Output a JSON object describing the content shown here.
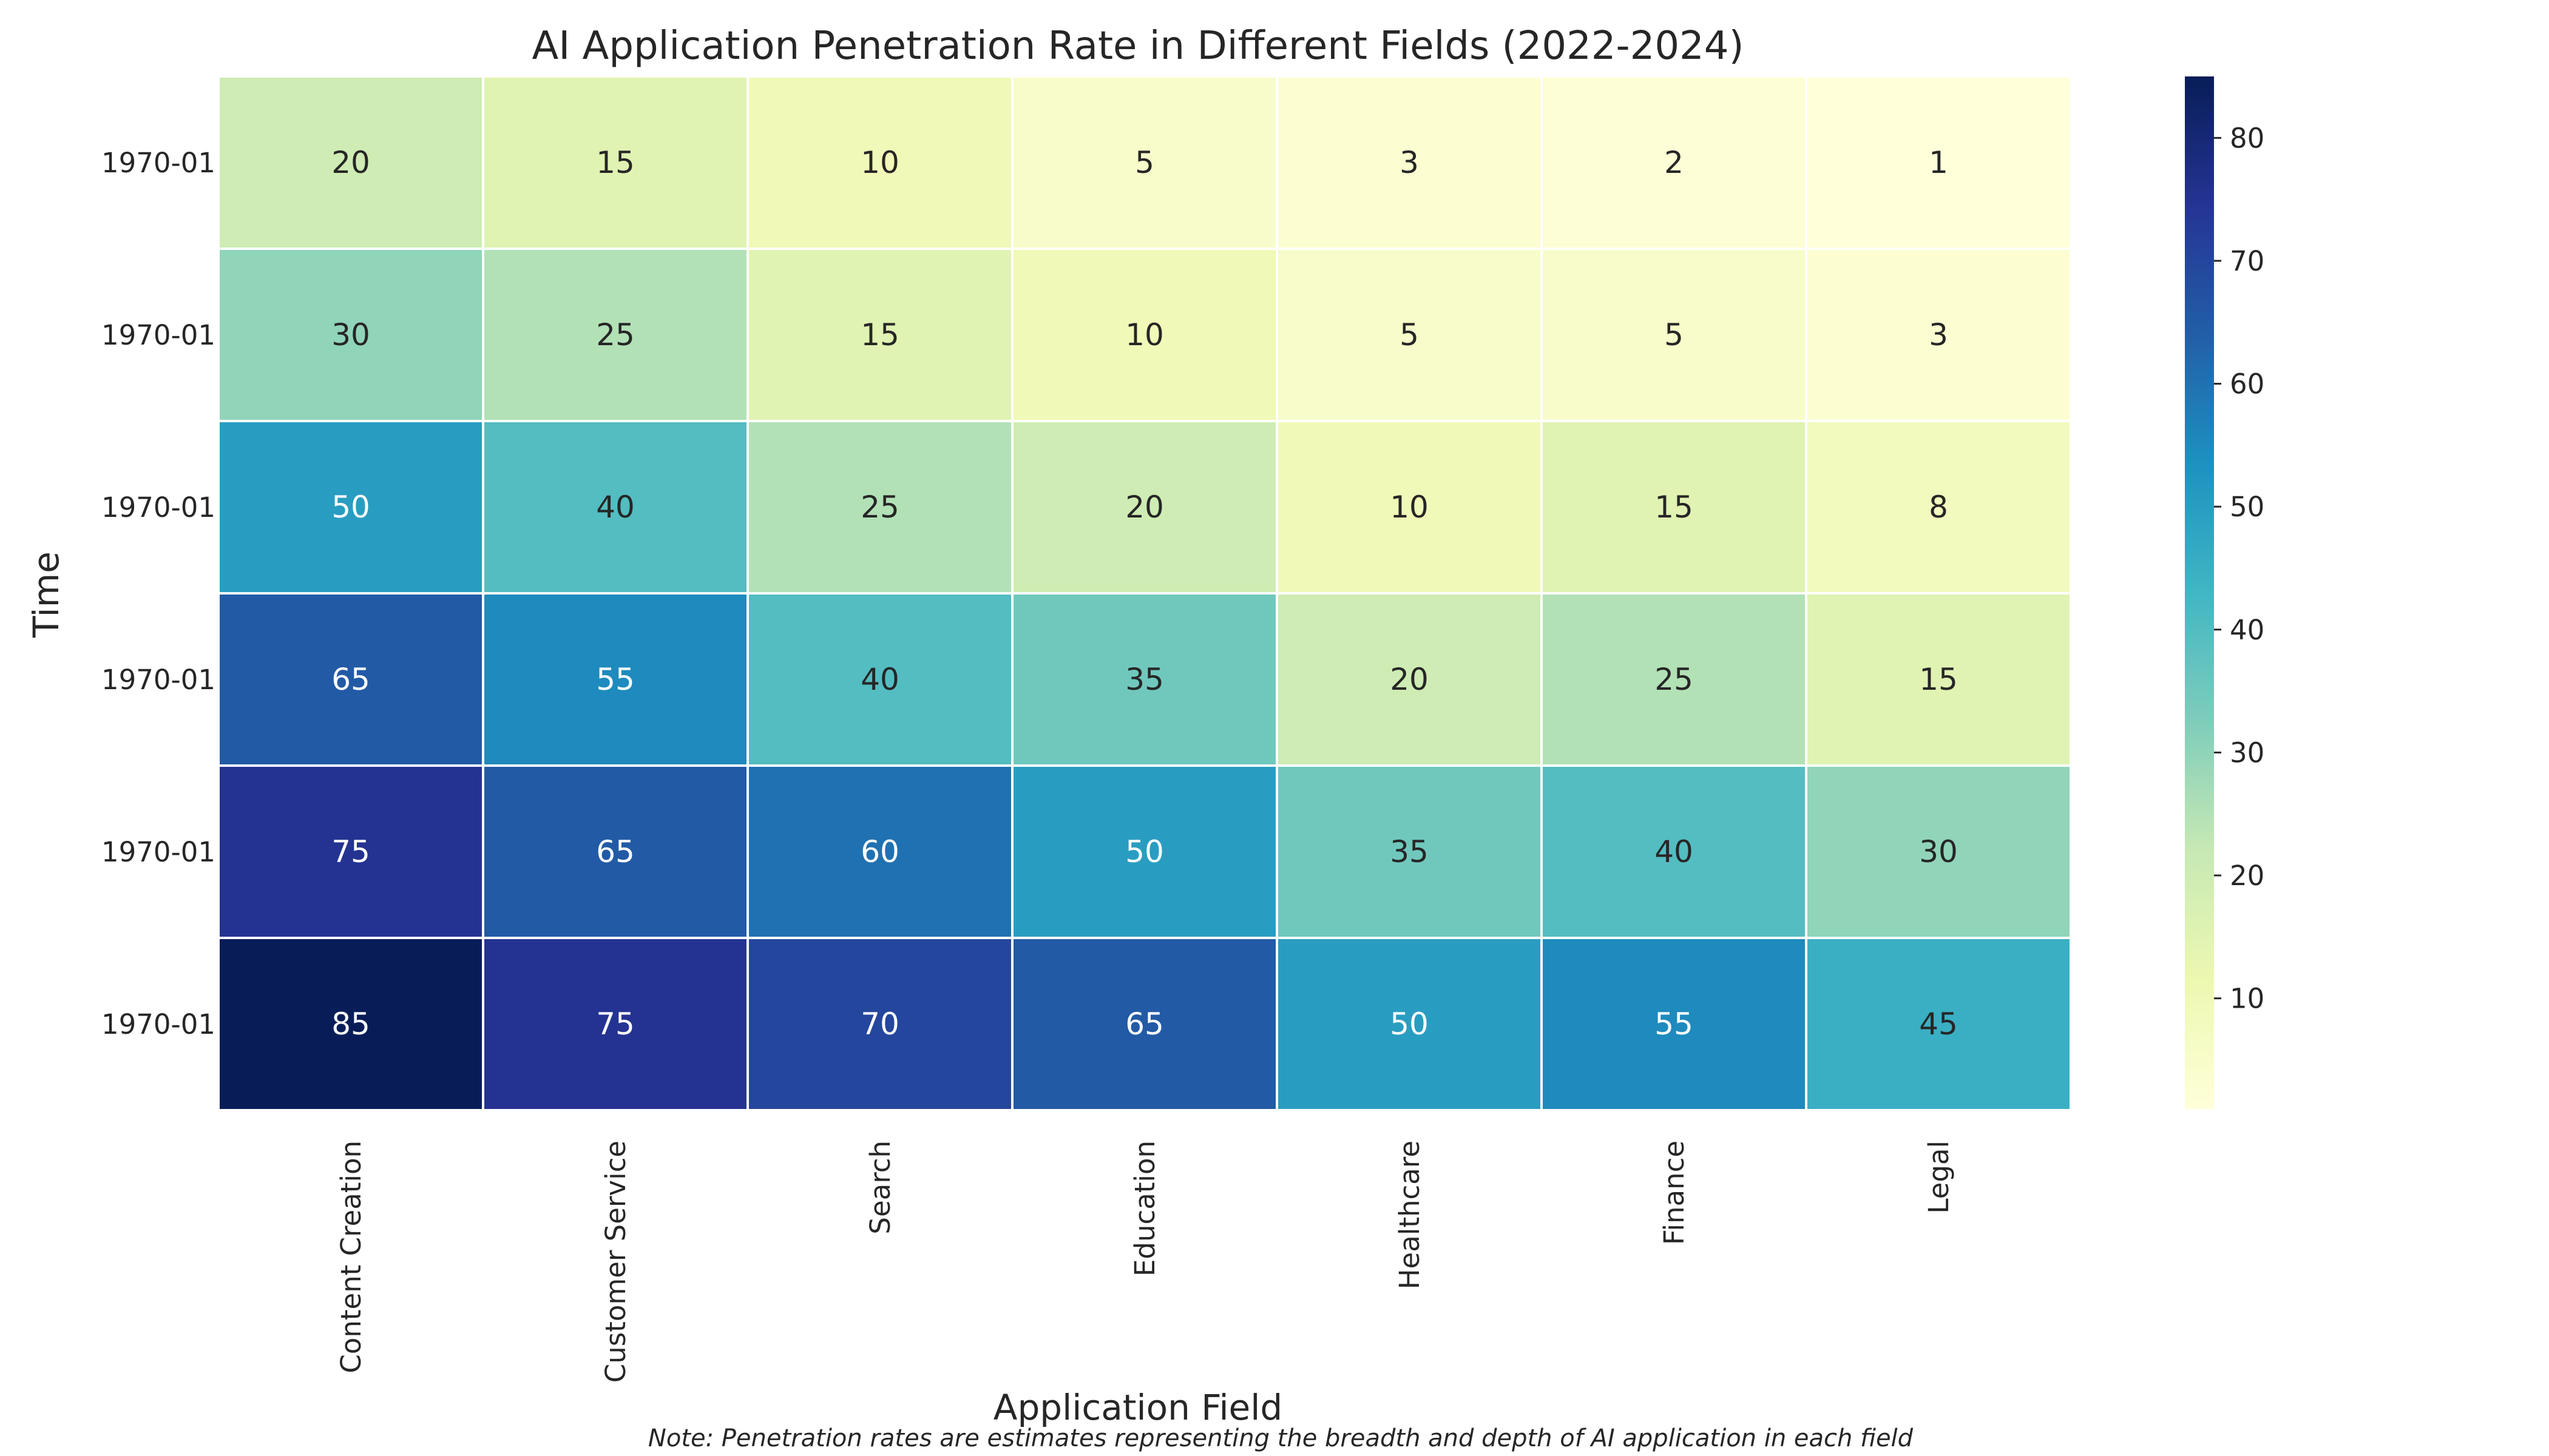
{
  "chart_data": {
    "type": "heatmap",
    "title": "AI Application Penetration Rate in Different Fields (2022-2024)",
    "xlabel": "Application Field",
    "ylabel": "Time",
    "note": "Note: Penetration rates are estimates representing the breadth and depth of AI application in each field",
    "columns": [
      "Content Creation",
      "Customer Service",
      "Search",
      "Education",
      "Healthcare",
      "Finance",
      "Legal"
    ],
    "rows": [
      "1970-01",
      "1970-01",
      "1970-01",
      "1970-01",
      "1970-01",
      "1970-01"
    ],
    "values": [
      [
        20,
        15,
        10,
        5,
        3,
        2,
        1
      ],
      [
        30,
        25,
        15,
        10,
        5,
        5,
        3
      ],
      [
        50,
        40,
        25,
        20,
        10,
        15,
        8
      ],
      [
        65,
        55,
        40,
        35,
        20,
        25,
        15
      ],
      [
        75,
        65,
        60,
        50,
        35,
        40,
        30
      ],
      [
        85,
        75,
        70,
        65,
        50,
        55,
        45
      ]
    ],
    "colormap": "YlGnBu",
    "vmin": 1,
    "vmax": 85,
    "colorbar_ticks": [
      10,
      20,
      30,
      40,
      50,
      60,
      70,
      80
    ],
    "annotate": true
  }
}
